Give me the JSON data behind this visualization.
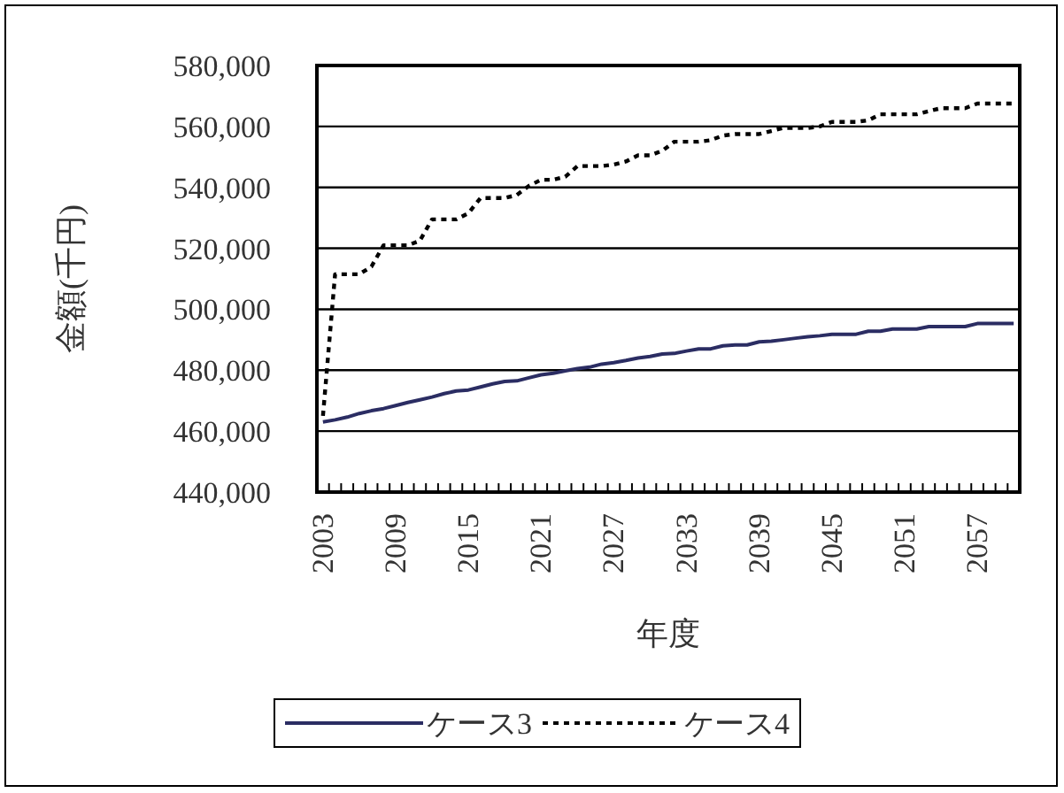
{
  "chart_data": {
    "type": "line",
    "xlabel": "年度",
    "ylabel": "金額(千円)",
    "categories": [
      "2003",
      null,
      null,
      null,
      null,
      null,
      "2009",
      null,
      null,
      null,
      null,
      null,
      "2015",
      null,
      null,
      null,
      null,
      null,
      "2021",
      null,
      null,
      null,
      null,
      null,
      "2027",
      null,
      null,
      null,
      null,
      null,
      "2033",
      null,
      null,
      null,
      null,
      null,
      "2039",
      null,
      null,
      null,
      null,
      null,
      "2045",
      null,
      null,
      null,
      null,
      null,
      "2051",
      null,
      null,
      null,
      null,
      null,
      "2057",
      null,
      null,
      null
    ],
    "series": [
      {
        "name": "ケース3",
        "color": "#2b2d63",
        "line_style": "solid",
        "values": [
          463000,
          463700,
          464600,
          465800,
          466700,
          467400,
          468400,
          469400,
          470300,
          471200,
          472300,
          473200,
          473500,
          474500,
          475500,
          476300,
          476500,
          477500,
          478500,
          479000,
          479800,
          480500,
          481000,
          482000,
          482500,
          483200,
          484000,
          484500,
          485300,
          485500,
          486300,
          487000,
          487000,
          488000,
          488300,
          488300,
          489300,
          489500,
          490000,
          490500,
          491000,
          491300,
          491800,
          491800,
          491800,
          492800,
          492800,
          493500,
          493500,
          493500,
          494300,
          494300,
          494300,
          494300,
          495300,
          495300,
          495300,
          495300
        ]
      },
      {
        "name": "ケース4",
        "color": "#000000",
        "line_style": "dotted",
        "values": [
          465000,
          511500,
          511500,
          511500,
          514000,
          521000,
          521000,
          521000,
          522500,
          529500,
          529500,
          529500,
          531500,
          536500,
          536500,
          536500,
          537500,
          540500,
          542500,
          542500,
          543500,
          547000,
          547000,
          547000,
          547500,
          548500,
          550500,
          550500,
          552000,
          555000,
          555000,
          555000,
          555500,
          557000,
          557500,
          557500,
          557500,
          558500,
          559500,
          559500,
          559500,
          560000,
          561500,
          561500,
          561500,
          562000,
          564000,
          564000,
          564000,
          564000,
          565000,
          566000,
          566000,
          566000,
          567500,
          567500,
          567500,
          567500
        ]
      }
    ],
    "ylim": [
      440000,
      580000
    ],
    "yticks": [
      {
        "value": 440000,
        "label": "440,000"
      },
      {
        "value": 460000,
        "label": "460,000"
      },
      {
        "value": 480000,
        "label": "480,000"
      },
      {
        "value": 500000,
        "label": "500,000"
      },
      {
        "value": 520000,
        "label": "520,000"
      },
      {
        "value": 540000,
        "label": "540,000"
      },
      {
        "value": 560000,
        "label": "560,000"
      },
      {
        "value": 580000,
        "label": "580,000"
      }
    ],
    "grid": "y",
    "legend": "bottom",
    "marker": "none"
  }
}
